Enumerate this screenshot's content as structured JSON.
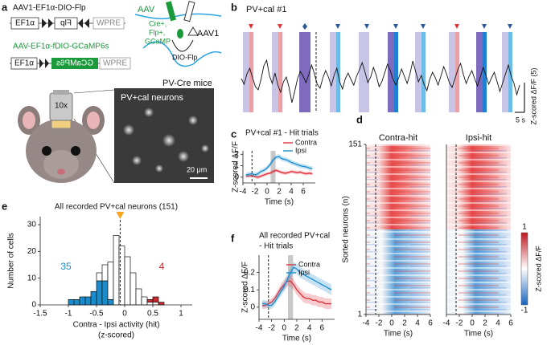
{
  "panel_labels": [
    "a",
    "b",
    "c",
    "d",
    "e",
    "f"
  ],
  "panel_a": {
    "construct1_title": "AAV1-EF1α-DIO-Flp",
    "construct1_boxes": [
      "EF1α",
      "Flp",
      "WPRE"
    ],
    "construct2_title": "AAV-EF1α-fDIO-GCaMP6s",
    "construct2_boxes": [
      "EF1α",
      "GCaMP6s",
      "WPRE"
    ],
    "injection_labels": [
      "AAV",
      "Cre+,",
      "Flp+,",
      "GCaMP",
      "AAV1",
      "DIO-Flp"
    ],
    "mouse_label": "PV-Cre mice",
    "objective": "10x",
    "image_title": "PV+cal neurons",
    "scale_bar": "20 μm"
  },
  "panel_b": {
    "title": "PV+cal #1",
    "scale_y": "Z-scored ΔF/F (5)",
    "scale_x": "5 s",
    "trace_ylim": [
      -4,
      6
    ],
    "trace": [
      0.2,
      -0.5,
      0.8,
      1.5,
      0.3,
      -0.8,
      -1.2,
      0.1,
      1.8,
      2.5,
      0.6,
      -0.4,
      0.9,
      -0.6,
      -1.5,
      -0.2,
      0.4,
      -0.9,
      -2.8,
      -1.4,
      0.2,
      1.1,
      0.5,
      -0.3,
      0.7,
      1.9,
      0.8,
      -0.5,
      -1.0,
      0.3,
      1.2,
      0.4,
      -0.7,
      0.6,
      1.5,
      -0.2,
      -1.1,
      0.2,
      0.9,
      0.1,
      -0.6,
      0.5,
      1.3,
      2.2,
      1.0,
      -0.3,
      0.4,
      1.6,
      0.6,
      -0.8,
      -0.2,
      0.9,
      2.0,
      1.2,
      0.1,
      -0.6,
      0.3,
      1.4,
      0.5,
      -0.4,
      0.8,
      2.4,
      1.1,
      -0.2,
      0.6,
      -0.5,
      -1.3,
      0.1,
      1.0,
      0.3,
      -0.6,
      0.5,
      1.7,
      0.8,
      -0.3,
      -0.9,
      0.2,
      1.3,
      2.1,
      0.7,
      -0.4,
      0.5,
      1.2,
      0.2,
      -0.7,
      0.4,
      1.6,
      0.6,
      -0.5,
      0.3,
      1.0,
      -0.2,
      -1.4,
      -0.3,
      0.8,
      1.9,
      0.5,
      -0.4,
      -1.8,
      -0.6
    ]
  },
  "panel_d": {
    "titles": [
      "Contra-hit",
      "Ipsi-hit"
    ],
    "ylabel": "Sorted neurons (n)",
    "yticks": [
      151,
      1
    ],
    "xlim": [
      -4,
      6
    ],
    "xticks": [
      -4,
      -2,
      0,
      2,
      4,
      6
    ],
    "xlabel": "Time (s)",
    "colorbar_ticks": [
      1,
      -1
    ],
    "colorbar_label": "Z-scored ΔF/F"
  },
  "chart_data": [
    {
      "type": "line",
      "title": "PV+cal #1 - Hit trials",
      "xlabel": "Time (s)",
      "ylabel": "Z-scored ΔF/F",
      "x": [
        -3.5,
        -3,
        -2.5,
        -2,
        -1.5,
        -1,
        -0.5,
        0,
        0.5,
        1,
        1.5,
        2,
        2.5,
        3,
        3.5,
        4,
        4.5,
        5,
        5.5,
        6,
        6.5,
        7,
        7.5
      ],
      "series": [
        {
          "name": "Contra",
          "color": "#e0333a",
          "values": [
            0.1,
            0.1,
            0.15,
            0.05,
            0,
            0.1,
            0.2,
            0.3,
            0.35,
            0.5,
            0.6,
            0.5,
            0.4,
            0.35,
            0.4,
            0.5,
            0.45,
            0.4,
            0.45,
            0.35,
            0.3,
            0.35,
            0.3
          ],
          "errors": [
            0.15,
            0.15,
            0.15,
            0.15,
            0.15,
            0.15,
            0.15,
            0.15,
            0.15,
            0.15,
            0.15,
            0.15,
            0.15,
            0.15,
            0.15,
            0.15,
            0.15,
            0.15,
            0.15,
            0.15,
            0.15,
            0.15,
            0.15
          ]
        },
        {
          "name": "Ipsi",
          "color": "#1f8fd0",
          "values": [
            0.2,
            0.25,
            0.3,
            0.2,
            0.3,
            0.5,
            0.6,
            0.8,
            1.1,
            1.5,
            1.75,
            1.8,
            1.6,
            1.55,
            1.45,
            1.3,
            1.2,
            1.1,
            1,
            0.95,
            0.9,
            0.8,
            0.75
          ],
          "errors": [
            0.2,
            0.2,
            0.2,
            0.2,
            0.2,
            0.2,
            0.2,
            0.2,
            0.2,
            0.2,
            0.2,
            0.2,
            0.2,
            0.2,
            0.2,
            0.2,
            0.2,
            0.2,
            0.2,
            0.2,
            0.2,
            0.2,
            0.2
          ]
        }
      ],
      "xlim": [
        -4,
        8
      ],
      "xticks": [
        -4,
        -2,
        0,
        2,
        4,
        6
      ],
      "ylim": [
        -0.5,
        2.3
      ],
      "yticks": [
        0,
        1,
        2
      ],
      "vline": -2.5,
      "shaded_region": [
        0.6,
        1.4
      ]
    },
    {
      "type": "line",
      "title": [
        "All recorded PV+cal",
        "- Hit trials"
      ],
      "xlabel": "Time (s)",
      "ylabel": "Z-scored ΔF/F",
      "x": [
        -3.5,
        -3,
        -2.5,
        -2,
        -1.5,
        -1,
        -0.5,
        0,
        0.5,
        1,
        1.5,
        2,
        2.5,
        3,
        3.5,
        4,
        4.5,
        5,
        5.5,
        6,
        6.5,
        7,
        7.5
      ],
      "series": [
        {
          "name": "Contra",
          "color": "#e0333a",
          "values": [
            0.01,
            0.01,
            0.02,
            0.03,
            0.05,
            0.08,
            0.11,
            0.13,
            0.15,
            0.15,
            0.13,
            0.1,
            0.08,
            0.06,
            0.05,
            0.05,
            0.04,
            0.04,
            0.03,
            0.03,
            0.02,
            0.02,
            0.02
          ],
          "errors": [
            0.02,
            0.02,
            0.02,
            0.02,
            0.02,
            0.02,
            0.025,
            0.03,
            0.03,
            0.03,
            0.03,
            0.03,
            0.03,
            0.03,
            0.03,
            0.03,
            0.03,
            0.03,
            0.03,
            0.03,
            0.03,
            0.03,
            0.03
          ]
        },
        {
          "name": "Ipsi",
          "color": "#1f8fd0",
          "values": [
            0.02,
            0.02,
            0.01,
            0.01,
            0.03,
            0.06,
            0.09,
            0.12,
            0.16,
            0.2,
            0.23,
            0.22,
            0.2,
            0.19,
            0.18,
            0.17,
            0.16,
            0.15,
            0.14,
            0.13,
            0.12,
            0.11,
            0.1
          ],
          "errors": [
            0.02,
            0.02,
            0.02,
            0.02,
            0.02,
            0.02,
            0.025,
            0.03,
            0.03,
            0.03,
            0.03,
            0.03,
            0.03,
            0.03,
            0.03,
            0.03,
            0.03,
            0.03,
            0.03,
            0.03,
            0.03,
            0.03,
            0.03
          ]
        }
      ],
      "xlim": [
        -4,
        8
      ],
      "xticks": [
        -4,
        -2,
        0,
        2,
        4,
        6
      ],
      "ylim": [
        -0.07,
        0.3
      ],
      "yticks": [
        0,
        0.1,
        0.2
      ],
      "vline": -2.5,
      "shaded_region": [
        0.6,
        1.4
      ]
    },
    {
      "type": "histogram",
      "title": "All recorded PV+cal neurons (151)",
      "xlabel": [
        "Contra - Ipsi activity (hit)",
        "(z-scored)"
      ],
      "ylabel": "Number of cells",
      "bins": [
        -1,
        -0.9,
        -0.8,
        -0.7,
        -0.6,
        -0.5,
        -0.4,
        -0.3,
        -0.2,
        -0.1,
        0,
        0.1,
        0.2,
        0.3,
        0.4,
        0.5,
        0.6,
        0.7
      ],
      "series": [
        {
          "color": "#1a8ccc",
          "values": [
            2,
            2,
            3,
            3,
            5,
            9,
            9,
            2,
            0,
            0,
            0,
            0,
            0,
            0,
            0,
            0,
            0
          ]
        },
        {
          "color": "#ffffff",
          "values": [
            0,
            0,
            0,
            0,
            0,
            3,
            6,
            14,
            26,
            22,
            18,
            12,
            6,
            3,
            1,
            1,
            0
          ]
        },
        {
          "color": "#c8282d",
          "values": [
            0,
            0,
            0,
            0,
            0,
            0,
            0,
            0,
            0,
            0,
            0,
            0,
            0,
            0,
            1,
            2,
            1
          ]
        }
      ],
      "annotations": [
        {
          "text": "35",
          "color": "#1a8ccc"
        },
        {
          "text": "4",
          "color": "#c8282d"
        }
      ],
      "vline": -0.08,
      "marker_color": "#f5a623",
      "xlim": [
        -1.5,
        1.2
      ],
      "xticks": [
        -1.5,
        -1,
        -0.5,
        0,
        0.5,
        1
      ],
      "ylim": [
        0,
        33
      ],
      "yticks": [
        0,
        10,
        20,
        30
      ]
    }
  ]
}
